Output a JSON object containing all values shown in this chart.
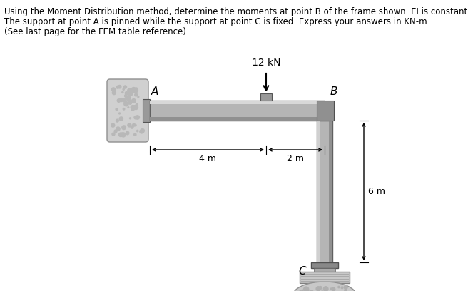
{
  "title_lines": [
    "Using the Moment Distribution method, determine the moments at point B of the frame shown. EI is constant.",
    "The support at point A is pinned while the support at point C is fixed. Express your answers in KN-m.",
    "(See last page for the FEM table reference)"
  ],
  "load_label": "12 kN",
  "label_A": "A",
  "label_B": "B",
  "label_C": "C",
  "dim_AB_left": "4 m",
  "dim_AB_right": "2 m",
  "dim_BC": "6 m",
  "bg_color": "#ffffff",
  "beam_color_light": "#c8c8c8",
  "beam_color_dark": "#888888",
  "column_color_light": "#c0c0c0",
  "column_color_dark": "#808080",
  "wall_color": "#b0b0b0",
  "text_color": "#000000",
  "font_size_title": 8.5,
  "font_size_labels": 10,
  "font_size_dims": 9
}
